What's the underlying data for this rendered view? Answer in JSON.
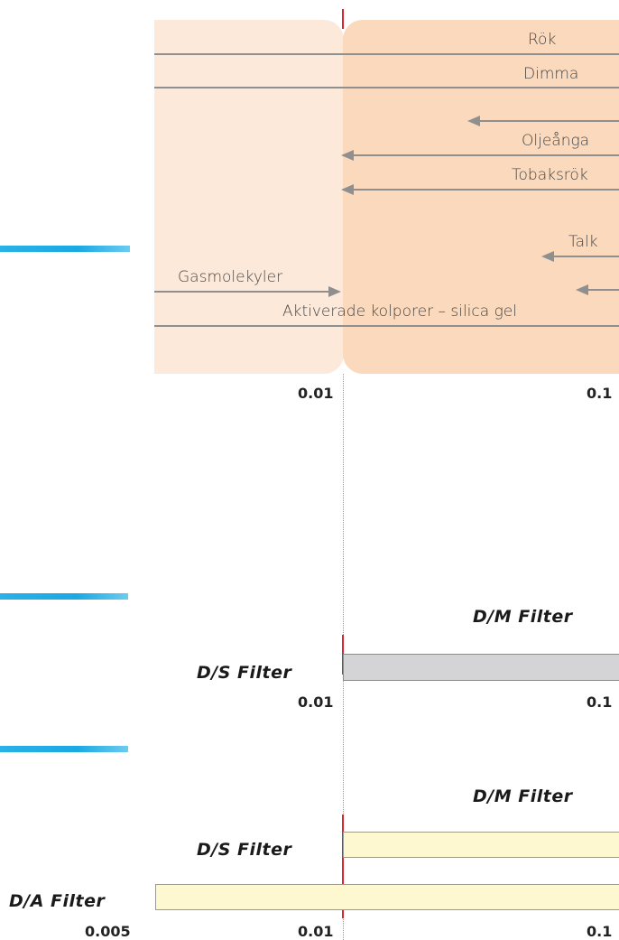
{
  "chart": {
    "labels": {
      "rok": "Rök",
      "dimma": "Dimma",
      "oljeanga": "Oljeånga",
      "tobaksrok": "Tobaksrök",
      "talk": "Talk",
      "gasmolekyler": "Gasmolekyler",
      "aktiverade": "Aktiverade kolporer – silica gel"
    },
    "ticks": {
      "t001": "0.01",
      "t01": "0.1"
    }
  },
  "section2": {
    "dm_label": "D/M Filter",
    "ds_label": "D/S Filter",
    "tick_001": "0.01",
    "tick_01": "0.1"
  },
  "section3": {
    "dm_label": "D/M Filter",
    "ds_label": "D/S Filter",
    "da_label": "D/A Filter",
    "tick_0005": "0.005",
    "tick_001": "0.01",
    "tick_01": "0.1"
  },
  "colors": {
    "panel_left": "#fde9da",
    "panel_right": "#fbd9bd",
    "accent_blue": "#1aa9e3",
    "marker_red": "#d8262f",
    "ds_bar_gray": "#d4d4d6",
    "filter_bar_yellow": "#fdf8cf"
  }
}
